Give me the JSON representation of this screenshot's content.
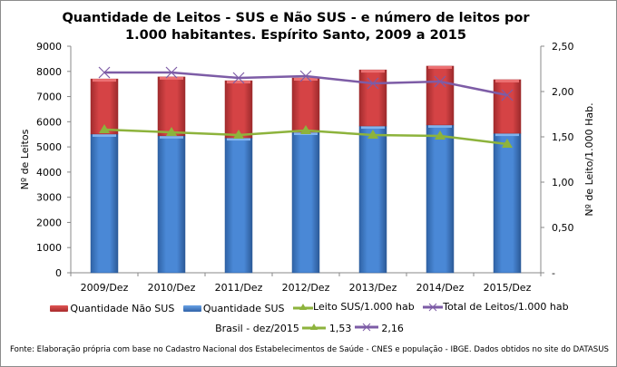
{
  "chart_data": {
    "type": "bar",
    "title": "Quantidade de Leitos - SUS e Não SUS - e número de leitos por 1.000 habitantes. Espírito Santo, 2009 a 2015",
    "categories": [
      "2009/Dez",
      "2010/Dez",
      "2011/Dez",
      "2012/Dez",
      "2013/Dez",
      "2014/Dez",
      "2015/Dez"
    ],
    "ylabel": "Nº de Leitos",
    "y2label": "Nº de Leito/1.000 Hab.",
    "ylim": [
      0,
      9000
    ],
    "y2lim": [
      0,
      2.5
    ],
    "yticks": [
      "0",
      "1000",
      "2000",
      "3000",
      "4000",
      "5000",
      "6000",
      "7000",
      "8000",
      "9000"
    ],
    "y2ticks": [
      "-",
      "0,50",
      "1,00",
      "1,50",
      "2,00",
      "2,50"
    ],
    "grid": false,
    "legend_position": "bottom",
    "series": [
      {
        "name": "Quantidade Não SUS",
        "type": "stacked-bar",
        "axis": "left",
        "color": "#c0393b",
        "values": [
          2190,
          2340,
          2270,
          2160,
          2230,
          2340,
          2130
        ]
      },
      {
        "name": "Quantidade SUS",
        "type": "stacked-bar",
        "axis": "left",
        "color": "#3f7bc9",
        "values": [
          5510,
          5440,
          5360,
          5580,
          5830,
          5870,
          5540
        ]
      },
      {
        "name": "Leito SUS/1.000 hab",
        "type": "line",
        "axis": "right",
        "marker": "triangle",
        "color": "#8db33c",
        "values": [
          1.58,
          1.55,
          1.52,
          1.57,
          1.52,
          1.51,
          1.42
        ]
      },
      {
        "name": "Total de Leitos/1.000 hab",
        "type": "line",
        "axis": "right",
        "marker": "x",
        "color": "#7d5ca6",
        "values": [
          2.21,
          2.21,
          2.15,
          2.17,
          2.09,
          2.11,
          1.96
        ]
      }
    ]
  },
  "brasil": {
    "label": "Brasil -  dez/2015",
    "sus_value": "1,53",
    "total_value": "2,16"
  },
  "source": "Fonte: Elaboração própria com base no  Cadastro Nacional dos Estabelecimentos de Saúde - CNES e população - IBGE. Dados obtidos no site do DATASUS"
}
